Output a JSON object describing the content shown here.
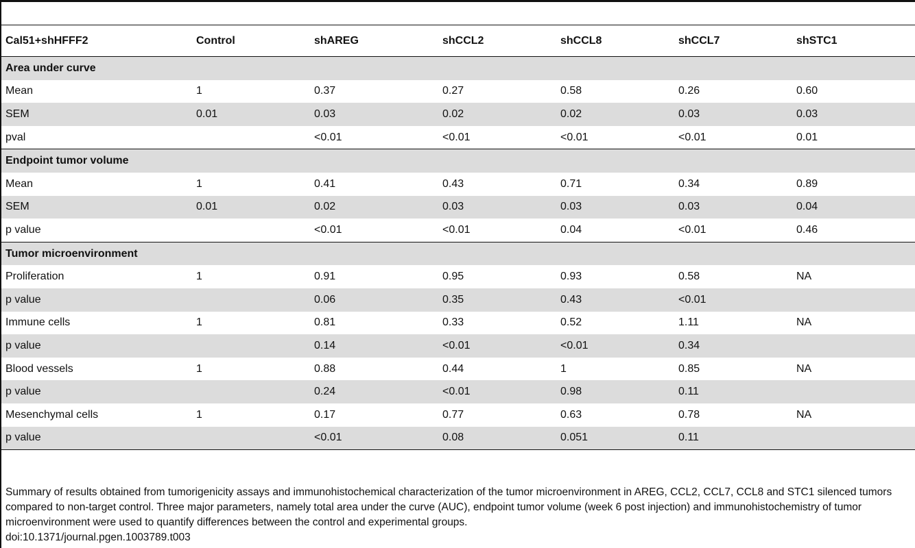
{
  "table": {
    "headers": [
      "Cal51+shHFFF2",
      "Control",
      "shAREG",
      "shCCL2",
      "shCCL8",
      "shCCL7",
      "shSTC1"
    ],
    "sections": [
      {
        "title": "Area under curve",
        "rows": [
          {
            "label": "Mean",
            "values": [
              "1",
              "0.37",
              "0.27",
              "0.58",
              "0.26",
              "0.60"
            ]
          },
          {
            "label": "SEM",
            "values": [
              "0.01",
              "0.03",
              "0.02",
              "0.02",
              "0.03",
              "0.03"
            ]
          },
          {
            "label": "pval",
            "values": [
              "",
              "<0.01",
              "<0.01",
              "<0.01",
              "<0.01",
              "0.01"
            ]
          }
        ]
      },
      {
        "title": "Endpoint tumor volume",
        "rows": [
          {
            "label": "Mean",
            "values": [
              "1",
              "0.41",
              "0.43",
              "0.71",
              "0.34",
              "0.89"
            ]
          },
          {
            "label": "SEM",
            "values": [
              "0.01",
              "0.02",
              "0.03",
              "0.03",
              "0.03",
              "0.04"
            ]
          },
          {
            "label": "p value",
            "values": [
              "",
              "<0.01",
              "<0.01",
              "0.04",
              "<0.01",
              "0.46"
            ]
          }
        ]
      },
      {
        "title": "Tumor microenvironment",
        "rows": [
          {
            "label": "Proliferation",
            "values": [
              "1",
              "0.91",
              "0.95",
              "0.93",
              "0.58",
              "NA"
            ]
          },
          {
            "label": "p value",
            "values": [
              "",
              "0.06",
              "0.35",
              "0.43",
              "<0.01",
              ""
            ]
          },
          {
            "label": "Immune cells",
            "values": [
              "1",
              "0.81",
              "0.33",
              "0.52",
              "1.11",
              "NA"
            ]
          },
          {
            "label": "p value",
            "values": [
              "",
              "0.14",
              "<0.01",
              "<0.01",
              "0.34",
              ""
            ]
          },
          {
            "label": "Blood vessels",
            "values": [
              "1",
              "0.88",
              "0.44",
              "1",
              "0.85",
              "NA"
            ]
          },
          {
            "label": "p value",
            "values": [
              "",
              "0.24",
              "<0.01",
              "0.98",
              "0.11",
              ""
            ]
          },
          {
            "label": "Mesenchymal cells",
            "values": [
              "1",
              "0.17",
              "0.77",
              "0.63",
              "0.78",
              "NA"
            ]
          },
          {
            "label": "p value",
            "values": [
              "",
              "<0.01",
              "0.08",
              "0.051",
              "0.11",
              ""
            ]
          }
        ]
      }
    ]
  },
  "caption": {
    "text": "Summary of results obtained from tumorigenicity assays and immunohistochemical characterization of the tumor microenvironment in AREG, CCL2, CCL7, CCL8 and STC1 silenced tumors compared to non-target control. Three major parameters, namely total area under the curve (AUC), endpoint tumor volume (week 6 post injection) and immunohistochemistry of tumor microenvironment were used to quantify differences between the control and experimental groups.",
    "doi": "doi:10.1371/journal.pgen.1003789.t003"
  }
}
